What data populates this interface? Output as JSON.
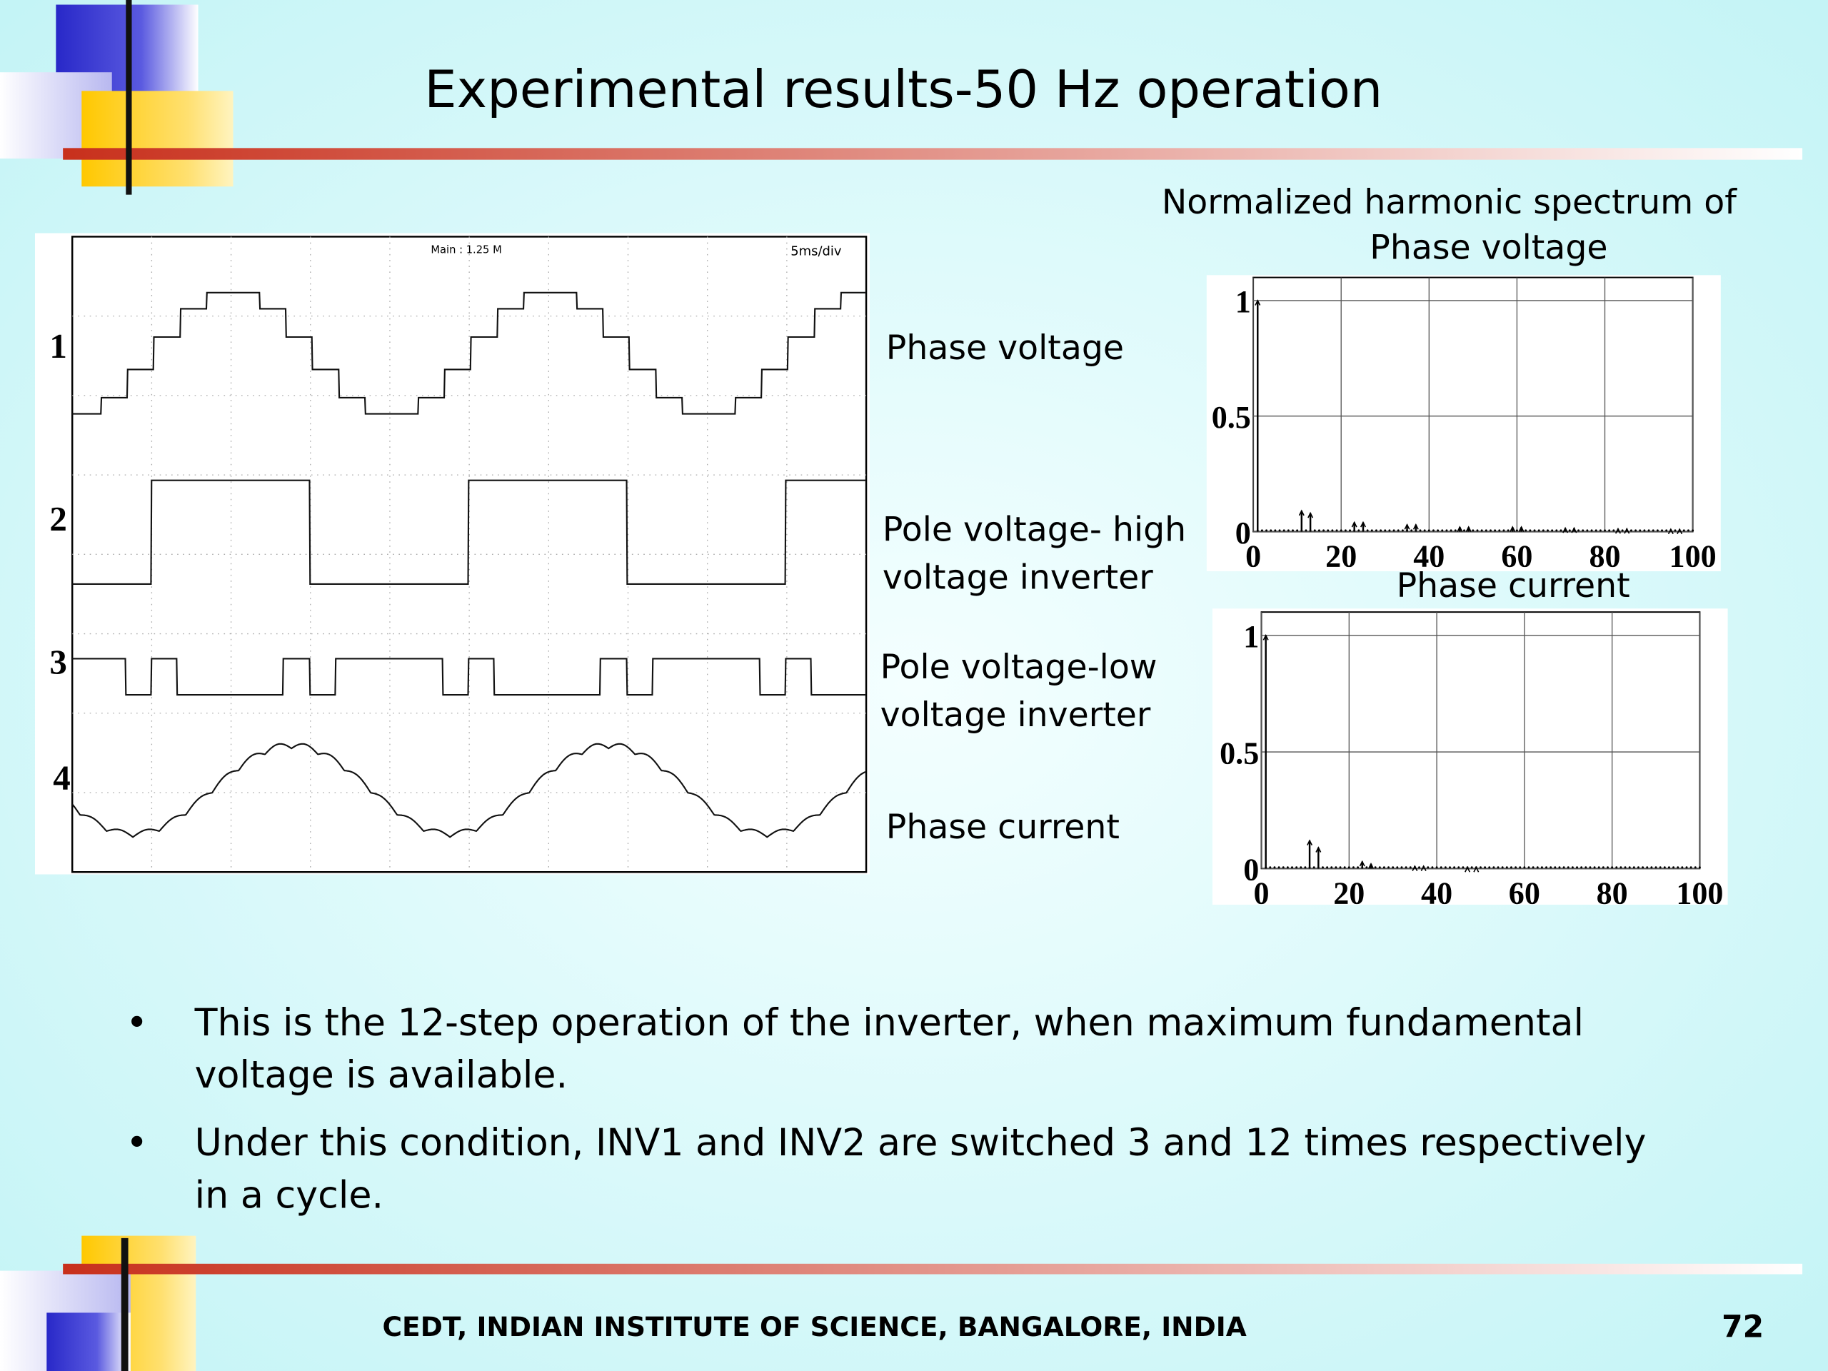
{
  "title": "Experimental results-50 Hz operation",
  "scope": {
    "channels": [
      "1",
      "2",
      "3",
      "4"
    ],
    "header_left": "Main : 1.25 M",
    "header_right": "5ms/div"
  },
  "signal_labels": [
    [
      "Phase voltage"
    ],
    [
      "Pole voltage- high",
      "voltage inverter"
    ],
    [
      "Pole voltage-low",
      "voltage inverter"
    ],
    [
      "Phase current"
    ]
  ],
  "chart_data": [
    {
      "type": "stem",
      "title": [
        "Normalized harmonic spectrum of",
        "Phase voltage"
      ],
      "color": "#000000",
      "x": [
        1,
        11,
        13,
        23,
        25,
        35,
        37,
        47,
        49,
        59,
        61,
        71,
        73,
        83,
        85,
        95,
        97
      ],
      "values": [
        1,
        0.09,
        0.08,
        0.04,
        0.04,
        0.03,
        0.03,
        0.02,
        0.02,
        0.02,
        0.02,
        0.015,
        0.015,
        0.012,
        0.012,
        0.01,
        0.01
      ],
      "xlim": [
        0,
        100
      ],
      "xticks": [
        0,
        20,
        40,
        60,
        80,
        100
      ],
      "ylim": [
        0,
        1.1
      ],
      "yticks": [
        0,
        0.5,
        1
      ],
      "grid": true
    },
    {
      "type": "stem",
      "title": [
        "Phase current"
      ],
      "color": "#000000",
      "x": [
        1,
        11,
        13,
        23,
        25,
        35,
        37,
        47,
        49
      ],
      "values": [
        1,
        0.12,
        0.09,
        0.03,
        0.02,
        0.01,
        0.01,
        0.005,
        0.005
      ],
      "xlim": [
        0,
        100
      ],
      "xticks": [
        0,
        20,
        40,
        60,
        80,
        100
      ],
      "ylim": [
        0,
        1.1
      ],
      "yticks": [
        0,
        0.5,
        1
      ],
      "grid": true
    }
  ],
  "bullets": [
    [
      "This is the 12-step operation of the inverter, when maximum fundamental",
      "voltage is available."
    ],
    [
      "Under this condition, INV1 and INV2 are switched 3 and 12 times respectively",
      "in a cycle."
    ]
  ],
  "footer": {
    "text": "CEDT, INDIAN INSTITUTE OF SCIENCE, BANGALORE, INDIA",
    "page": "72"
  }
}
